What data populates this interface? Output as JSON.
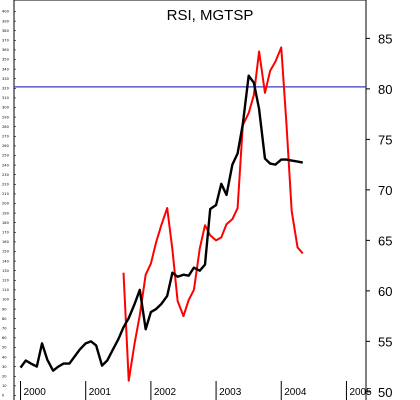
{
  "chart_data": {
    "type": "line",
    "title": "RSI, MGTSP",
    "x_tick_labels": [
      "2000",
      "2001",
      "2002",
      "2003",
      "2004",
      "2005"
    ],
    "x_tick_positions": [
      2000.0,
      2001.0,
      2002.0,
      2003.0,
      2004.0,
      2005.0
    ],
    "x_range": [
      1999.9,
      2005.3
    ],
    "left_axis": {
      "ticks": [
        0,
        10,
        20,
        30,
        40,
        50,
        60,
        70,
        80,
        90,
        100,
        110,
        120,
        130,
        140,
        150,
        160,
        170,
        180,
        190,
        200,
        210,
        220,
        230,
        240,
        250,
        260,
        270,
        280,
        290,
        300,
        310,
        320,
        330,
        340,
        350,
        360,
        370,
        380,
        390,
        400
      ],
      "range": [
        -12,
        412
      ]
    },
    "right_axis": {
      "ticks": [
        50,
        55,
        60,
        65,
        70,
        75,
        80,
        85
      ],
      "range": [
        48.5,
        88.8
      ]
    },
    "reference_line": {
      "axis": "right",
      "value": 80.2,
      "color": "#3b3bc8"
    },
    "series": [
      {
        "color": "#ff0000",
        "axis": "right",
        "x": [
          2001.58,
          2001.66,
          2001.75,
          2001.83,
          2001.92,
          2002.0,
          2002.08,
          2002.16,
          2002.25,
          2002.33,
          2002.41,
          2002.5,
          2002.58,
          2002.66,
          2002.75,
          2002.83,
          2002.91,
          2003.0,
          2003.08,
          2003.16,
          2003.25,
          2003.33,
          2003.41,
          2003.5,
          2003.58,
          2003.66,
          2003.75,
          2003.83,
          2003.91,
          2004.0,
          2004.08,
          2004.16,
          2004.25,
          2004.33
        ],
        "y": [
          61.8,
          51.1,
          54.8,
          57.6,
          61.6,
          62.7,
          64.8,
          66.5,
          68.2,
          64.1,
          59.0,
          57.5,
          59.1,
          60.1,
          64.2,
          66.5,
          65.5,
          65.0,
          65.3,
          66.6,
          67.1,
          68.2,
          76.4,
          77.6,
          79.4,
          83.7,
          79.6,
          81.8,
          82.7,
          84.1,
          76.5,
          67.9,
          64.3,
          63.7
        ],
        "y_pixel_hint": "original pixel-traced values kept for fidelity"
      },
      {
        "color": "#000000",
        "axis": "right",
        "x": [
          2000.0,
          2000.08,
          2000.16,
          2000.25,
          2000.33,
          2000.41,
          2000.5,
          2000.58,
          2000.66,
          2000.75,
          2000.83,
          2000.91,
          2001.0,
          2001.08,
          2001.16,
          2001.25,
          2001.33,
          2001.41,
          2001.5,
          2001.58,
          2001.66,
          2001.75,
          2001.83,
          2001.92,
          2002.0,
          2002.08,
          2002.16,
          2002.25,
          2002.33,
          2002.41,
          2002.5,
          2002.58,
          2002.66,
          2002.75,
          2002.83,
          2002.91,
          2003.0,
          2003.08,
          2003.16,
          2003.25,
          2003.33,
          2003.41,
          2003.5,
          2003.58,
          2003.66,
          2003.75,
          2003.83,
          2003.91,
          2004.0,
          2004.08,
          2004.16,
          2004.25,
          2004.33
        ],
        "y": [
          52.4,
          53.1,
          52.8,
          52.5,
          54.8,
          53.2,
          52.1,
          52.5,
          52.8,
          52.8,
          53.5,
          54.2,
          54.8,
          55.0,
          54.6,
          52.6,
          53.1,
          54.1,
          55.2,
          56.4,
          57.3,
          58.7,
          60.1,
          56.2,
          57.9,
          58.2,
          58.7,
          59.5,
          61.8,
          61.4,
          61.6,
          61.5,
          62.3,
          62.0,
          62.6,
          68.1,
          68.5,
          70.6,
          69.5,
          72.5,
          73.6,
          76.5,
          81.3,
          80.6,
          78.0,
          73.1,
          72.6,
          72.5,
          73.0,
          73.0,
          72.9,
          72.8,
          72.7
        ]
      }
    ]
  }
}
